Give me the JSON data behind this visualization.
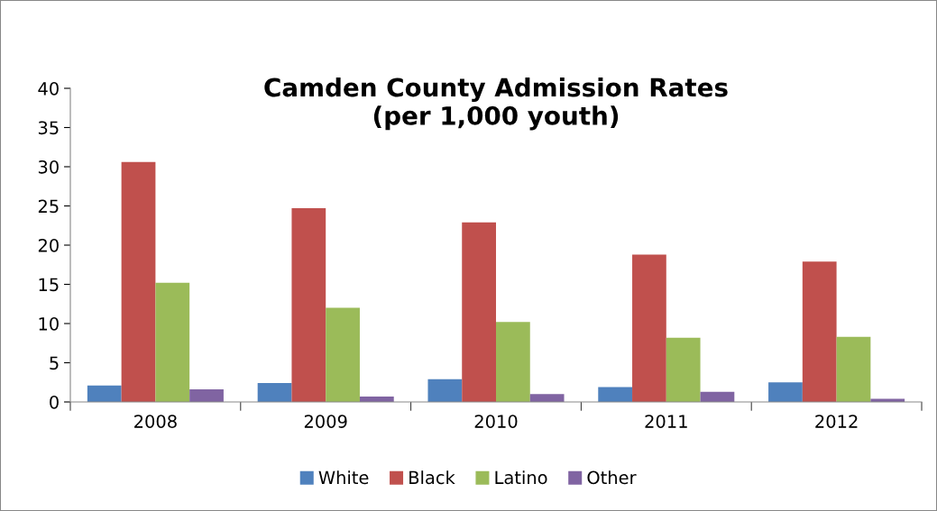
{
  "chart_data": {
    "type": "bar",
    "title": "Camden County Admission Rates\n(per 1,000 youth)",
    "categories": [
      "2008",
      "2009",
      "2010",
      "2011",
      "2012"
    ],
    "series": [
      {
        "name": "White",
        "color": "#4f81bd",
        "values": [
          2.1,
          2.4,
          2.9,
          1.9,
          2.5
        ]
      },
      {
        "name": "Black",
        "color": "#c0504d",
        "values": [
          30.6,
          24.7,
          22.9,
          18.8,
          17.9
        ]
      },
      {
        "name": "Latino",
        "color": "#9bbb59",
        "values": [
          15.2,
          12.0,
          10.2,
          8.2,
          8.3
        ]
      },
      {
        "name": "Other",
        "color": "#8064a2",
        "values": [
          1.6,
          0.7,
          1.0,
          1.3,
          0.4
        ]
      }
    ],
    "ylim": [
      0,
      40
    ],
    "yticks": [
      0,
      5,
      10,
      15,
      20,
      25,
      30,
      35,
      40
    ],
    "grid": false,
    "legend": "bottom"
  }
}
